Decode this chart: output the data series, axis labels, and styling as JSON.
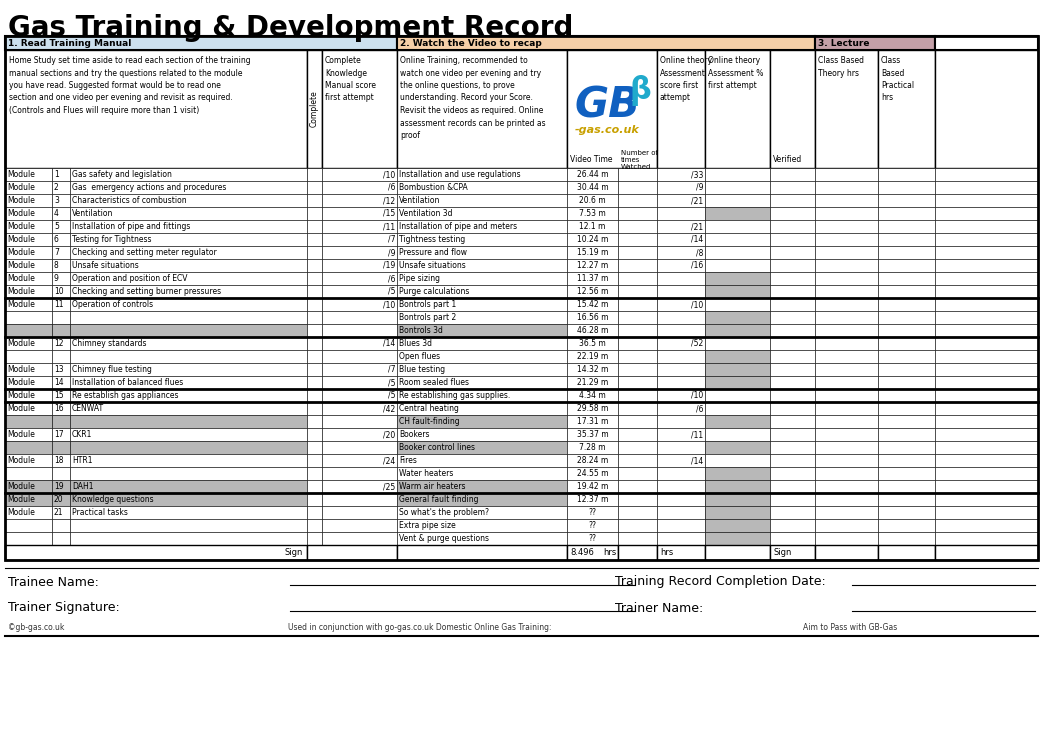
{
  "title": "Gas Training & Development Record",
  "section1_label": "1. Read Training Manual",
  "section2_label": "2. Watch the Video to recap",
  "section3_label": "3. Lecture",
  "section1_color": "#cce0ee",
  "section2_color": "#f5cfa8",
  "section3_color": "#c4a0a8",
  "header_desc1": "Home Study set time aside to read each section of the training\nmanual sections and try the questions related to the module\nyou have read. Suggested format would be to read one\nsection and one video per evening and revisit as required.\n(Controls and Flues will require more than 1 visit)",
  "header_desc2": "Online Training, recommended to\nwatch one video per evening and try\nthe online questions, to prove\nunderstanding. Record your Score.\nRevisit the videos as required. Online\nassessment records can be printed as\nproof",
  "rows": [
    {
      "module": "Module",
      "num": "1",
      "desc": "Gas safety and legislation",
      "score": "/10",
      "video": "Installation and use regulations",
      "time": "26.44 m",
      "assess": "/33",
      "gray_assess": false,
      "gray_bg": false,
      "thick_top": false
    },
    {
      "module": "Module",
      "num": "2",
      "desc": "Gas  emergency actions and procedures",
      "score": "/6",
      "video": "Bombustion &CPA",
      "time": "30.44 m",
      "assess": "/9",
      "gray_assess": false,
      "gray_bg": false,
      "thick_top": false
    },
    {
      "module": "Module",
      "num": "3",
      "desc": "Characteristics of combustion",
      "score": "/12",
      "video": "Ventilation",
      "time": "20.6 m",
      "assess": "/21",
      "gray_assess": false,
      "gray_bg": false,
      "thick_top": false
    },
    {
      "module": "Module",
      "num": "4",
      "desc": "Ventilation",
      "score": "/15",
      "video": "Ventilation 3d",
      "time": "7.53 m",
      "assess": "",
      "gray_assess": true,
      "gray_bg": false,
      "thick_top": false
    },
    {
      "module": "Module",
      "num": "5",
      "desc": "Installation of pipe and fittings",
      "score": "/11",
      "video": "Installation of pipe and meters",
      "time": "12.1 m",
      "assess": "/21",
      "gray_assess": false,
      "gray_bg": false,
      "thick_top": false
    },
    {
      "module": "Module",
      "num": "6",
      "desc": "Testing for Tightness",
      "score": "/7",
      "video": "Tightness testing",
      "time": "10.24 m",
      "assess": "/14",
      "gray_assess": false,
      "gray_bg": false,
      "thick_top": false
    },
    {
      "module": "Module",
      "num": "7",
      "desc": "Checking and setting meter regulator",
      "score": "/9",
      "video": "Pressure and flow",
      "time": "15.19 m",
      "assess": "/8",
      "gray_assess": false,
      "gray_bg": false,
      "thick_top": false
    },
    {
      "module": "Module",
      "num": "8",
      "desc": "Unsafe situations",
      "score": "/19",
      "video": "Unsafe situations",
      "time": "12.27 m",
      "assess": "/16",
      "gray_assess": false,
      "gray_bg": false,
      "thick_top": false
    },
    {
      "module": "Module",
      "num": "9",
      "desc": "Operation and position of ECV",
      "score": "/6",
      "video": "Pipe sizing",
      "time": "11.37 m",
      "assess": "",
      "gray_assess": true,
      "gray_bg": false,
      "thick_top": false
    },
    {
      "module": "Module",
      "num": "10",
      "desc": "Checking and setting burner pressures",
      "score": "/5",
      "video": "Purge calculations",
      "time": "12.56 m",
      "assess": "",
      "gray_assess": true,
      "gray_bg": false,
      "thick_top": false
    },
    {
      "module": "Module",
      "num": "11",
      "desc": "Operation of controls",
      "score": "/10",
      "video": "Bontrols part 1",
      "time": "15.42 m",
      "assess": "/10",
      "gray_assess": false,
      "gray_bg": false,
      "thick_top": true
    },
    {
      "module": "",
      "num": "",
      "desc": "",
      "score": "",
      "video": "Bontrols part 2",
      "time": "16.56 m",
      "assess": "",
      "gray_assess": true,
      "gray_bg": false,
      "thick_top": false
    },
    {
      "module": "",
      "num": "",
      "desc": "",
      "score": "",
      "video": "Bontrols 3d",
      "time": "46.28 m",
      "assess": "",
      "gray_assess": true,
      "gray_bg": true,
      "thick_top": false
    },
    {
      "module": "Module",
      "num": "12",
      "desc": "Chimney standards",
      "score": "/14",
      "video": "Blues 3d",
      "time": "36.5 m",
      "assess": "/52",
      "gray_assess": false,
      "gray_bg": false,
      "thick_top": true
    },
    {
      "module": "",
      "num": "",
      "desc": "",
      "score": "",
      "video": "Open flues",
      "time": "22.19 m",
      "assess": "",
      "gray_assess": true,
      "gray_bg": false,
      "thick_top": false
    },
    {
      "module": "Module",
      "num": "13",
      "desc": "Chimney flue testing",
      "score": "/7",
      "video": "Blue testing",
      "time": "14.32 m",
      "assess": "",
      "gray_assess": true,
      "gray_bg": false,
      "thick_top": false
    },
    {
      "module": "Module",
      "num": "14",
      "desc": "Installation of balanced flues",
      "score": "/5",
      "video": "Room sealed flues",
      "time": "21.29 m",
      "assess": "",
      "gray_assess": true,
      "gray_bg": false,
      "thick_top": false
    },
    {
      "module": "Module",
      "num": "15",
      "desc": "Re establish gas appliances",
      "score": "/5",
      "video": "Re establishing gas supplies.",
      "time": "4.34 m",
      "assess": "/10",
      "gray_assess": false,
      "gray_bg": false,
      "thick_top": true
    },
    {
      "module": "Module",
      "num": "16",
      "desc": "CENWAT",
      "score": "/42",
      "video": "Central heating",
      "time": "29.58 m",
      "assess": "/6",
      "gray_assess": false,
      "gray_bg": false,
      "thick_top": true
    },
    {
      "module": "",
      "num": "",
      "desc": "",
      "score": "",
      "video": "CH fault-finding",
      "time": "17.31 m",
      "assess": "",
      "gray_assess": true,
      "gray_bg": true,
      "thick_top": false
    },
    {
      "module": "Module",
      "num": "17",
      "desc": "CKR1",
      "score": "/20",
      "video": "Bookers",
      "time": "35.37 m",
      "assess": "/11",
      "gray_assess": false,
      "gray_bg": false,
      "thick_top": false
    },
    {
      "module": "",
      "num": "",
      "desc": "",
      "score": "",
      "video": "Booker control lines",
      "time": "7.28 m",
      "assess": "",
      "gray_assess": true,
      "gray_bg": true,
      "thick_top": false
    },
    {
      "module": "Module",
      "num": "18",
      "desc": "HTR1",
      "score": "/24",
      "video": "Fires",
      "time": "28.24 m",
      "assess": "/14",
      "gray_assess": false,
      "gray_bg": false,
      "thick_top": false
    },
    {
      "module": "",
      "num": "",
      "desc": "",
      "score": "",
      "video": "Water heaters",
      "time": "24.55 m",
      "assess": "",
      "gray_assess": true,
      "gray_bg": false,
      "thick_top": false
    },
    {
      "module": "Module",
      "num": "19",
      "desc": "DAH1",
      "score": "/25",
      "video": "Warm air heaters",
      "time": "19.42 m",
      "assess": "",
      "gray_assess": true,
      "gray_bg": true,
      "thick_top": false
    },
    {
      "module": "Module",
      "num": "20",
      "desc": "Knowledge questions",
      "score": "",
      "video": "General fault finding",
      "time": "12.37 m",
      "assess": "",
      "gray_assess": true,
      "gray_bg": true,
      "thick_top": true
    },
    {
      "module": "Module",
      "num": "21",
      "desc": "Practical tasks",
      "score": "",
      "video": "So what's the problem?",
      "time": "??",
      "assess": "",
      "gray_assess": true,
      "gray_bg": false,
      "thick_top": false
    },
    {
      "module": "",
      "num": "",
      "desc": "",
      "score": "",
      "video": "Extra pipe size",
      "time": "??",
      "assess": "",
      "gray_assess": true,
      "gray_bg": false,
      "thick_top": false
    },
    {
      "module": "",
      "num": "",
      "desc": "",
      "score": "",
      "video": "Vent & purge questions",
      "time": "??",
      "assess": "",
      "gray_assess": true,
      "gray_bg": false,
      "thick_top": false
    }
  ],
  "footer_line1": "Trainee Name:",
  "footer_line2": "Trainer Signature:",
  "footer_line3": "Training Record Completion Date:",
  "footer_line4": "Trainer Name:",
  "footer_copy": "©gb-gas.co.uk",
  "footer_mid": "Used in conjunction with go-gas.co.uk Domestic Online Gas Training:",
  "footer_right": "Aim to Pass with GB-Gas"
}
